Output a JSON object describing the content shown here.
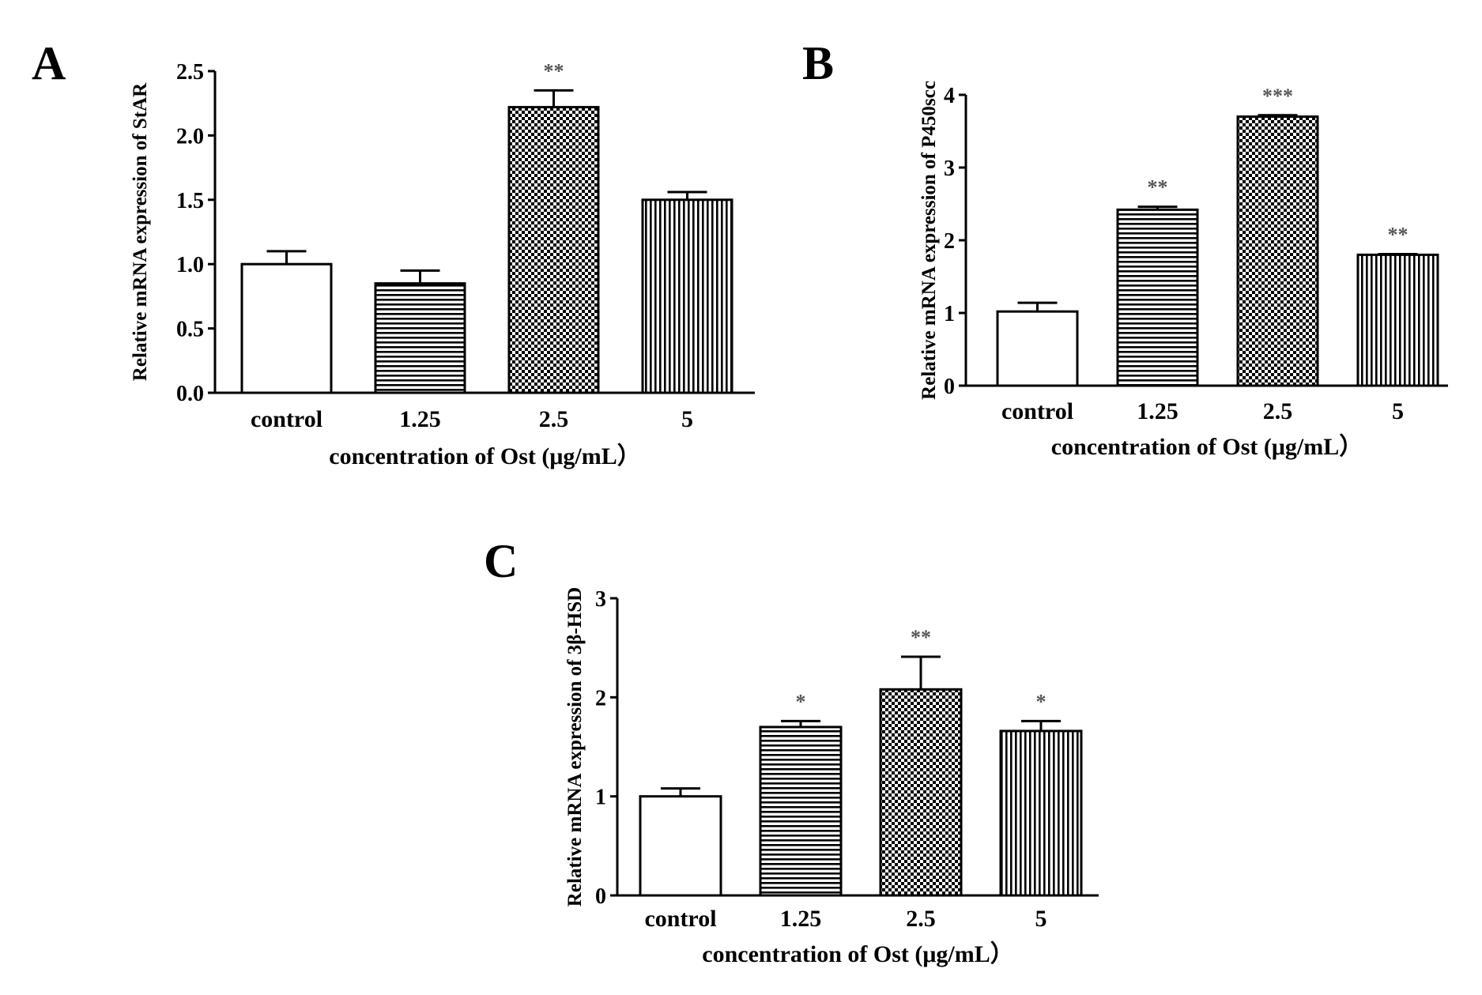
{
  "chart_data": [
    {
      "type": "bar",
      "panel": "A",
      "title": "",
      "xlabel": "concentration of Ost (μg/mL）",
      "ylabel": "Relative mRNA expression of StAR",
      "categories": [
        "control",
        "1.25",
        "2.5",
        "5"
      ],
      "values": [
        1.0,
        0.85,
        2.22,
        1.5
      ],
      "errors": [
        0.1,
        0.1,
        0.13,
        0.06
      ],
      "significance": [
        "",
        "",
        "**",
        ""
      ],
      "ylim": [
        0,
        2.5
      ],
      "yticks": [
        "0.0",
        "0.5",
        "1.0",
        "1.5",
        "2.0",
        "2.5"
      ],
      "patterns": [
        "none",
        "hlines",
        "checker",
        "vlines"
      ]
    },
    {
      "type": "bar",
      "panel": "B",
      "title": "",
      "xlabel": "concentration of Ost (μg/mL）",
      "ylabel": "Relative mRNA expression of P450scc",
      "categories": [
        "control",
        "1.25",
        "2.5",
        "5"
      ],
      "values": [
        1.02,
        2.42,
        3.7,
        1.8
      ],
      "errors": [
        0.12,
        0.04,
        0.02,
        0.01
      ],
      "significance": [
        "",
        "**",
        "***",
        "**"
      ],
      "ylim": [
        0,
        4
      ],
      "yticks": [
        "0",
        "1",
        "2",
        "3",
        "4"
      ],
      "patterns": [
        "none",
        "hlines",
        "checker",
        "vlines"
      ]
    },
    {
      "type": "bar",
      "panel": "C",
      "title": "",
      "xlabel": "concentration of Ost (μg/mL）",
      "ylabel": "Relative mRNA expression of 3β-HSD",
      "categories": [
        "control",
        "1.25",
        "2.5",
        "5"
      ],
      "values": [
        1.0,
        1.7,
        2.08,
        1.66
      ],
      "errors": [
        0.08,
        0.06,
        0.33,
        0.1
      ],
      "significance": [
        "",
        "*",
        "**",
        "*"
      ],
      "ylim": [
        0,
        3
      ],
      "yticks": [
        "0",
        "1",
        "2",
        "3"
      ],
      "patterns": [
        "none",
        "hlines",
        "checker",
        "vlines"
      ]
    }
  ]
}
